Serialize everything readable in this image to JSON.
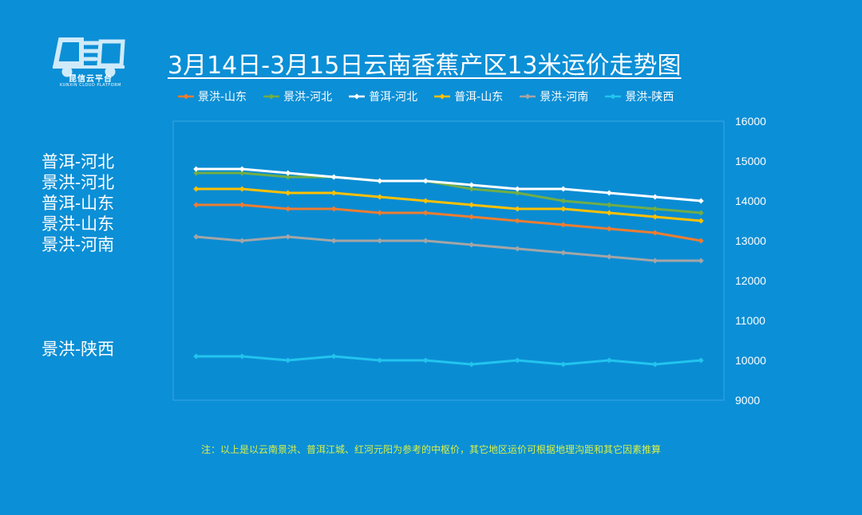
{
  "header": {
    "logo_icon": "truck-logo-icon",
    "logo_name": "昆信云平台",
    "logo_subtext": "KUNXIN CLOUD PLATFORM"
  },
  "colors": {
    "background": "#0b8fd6",
    "plot_area": "#0a8cd3",
    "footnote": "#d6f04a"
  },
  "side_labels": [
    {
      "text": "普洱-河北",
      "series": "普洱-河北"
    },
    {
      "text": "景洪-河北",
      "series": "景洪-河北"
    },
    {
      "text": "普洱-山东",
      "series": "普洱-山东"
    },
    {
      "text": "景洪-山东",
      "series": "景洪-山东"
    },
    {
      "text": "景洪-河南",
      "series": "景洪-河南"
    },
    {
      "text": "景洪-陕西",
      "series": "景洪-陕西"
    }
  ],
  "footnote": "注：以上是以云南景洪、普洱江城、红河元阳为参考的中枢价，其它地区运价可根据地理沟距和其它因素推算",
  "chart_data": {
    "type": "line",
    "title": "3月14日-3月15日云南香蕉产区13米运价走势图",
    "x": [
      "1",
      "2",
      "3",
      "4",
      "5",
      "6",
      "7",
      "8",
      "9",
      "10",
      "11",
      "12"
    ],
    "xlabel": "",
    "ylabel": "",
    "ylim": [
      9000,
      16000
    ],
    "yticks": [
      9000,
      10000,
      11000,
      12000,
      13000,
      14000,
      15000,
      16000
    ],
    "y_axis_side": "right",
    "grid": false,
    "legend_placement": "top",
    "series": [
      {
        "name": "景洪-山东",
        "color": "#ed7d31",
        "values": [
          13900,
          13900,
          13800,
          13800,
          13700,
          13700,
          13600,
          13500,
          13400,
          13300,
          13200,
          13000
        ]
      },
      {
        "name": "景洪-河北",
        "color": "#70ad47",
        "values": [
          14700,
          14700,
          14600,
          14600,
          14500,
          14500,
          14300,
          14200,
          14000,
          13900,
          13800,
          13700
        ]
      },
      {
        "name": "普洱-河北",
        "color": "#ffffff",
        "values": [
          14800,
          14800,
          14700,
          14600,
          14500,
          14500,
          14400,
          14300,
          14300,
          14200,
          14100,
          14000
        ]
      },
      {
        "name": "普洱-山东",
        "color": "#ffc000",
        "values": [
          14300,
          14300,
          14200,
          14200,
          14100,
          14000,
          13900,
          13800,
          13800,
          13700,
          13600,
          13500
        ]
      },
      {
        "name": "景洪-河南",
        "color": "#a5a5a5",
        "values": [
          13100,
          13000,
          13100,
          13000,
          13000,
          13000,
          12900,
          12800,
          12700,
          12600,
          12500,
          12500
        ]
      },
      {
        "name": "景洪-陕西",
        "color": "#22c4ee",
        "values": [
          10100,
          10100,
          10000,
          10100,
          10000,
          10000,
          9900,
          10000,
          9900,
          10000,
          9900,
          10000
        ]
      }
    ]
  }
}
